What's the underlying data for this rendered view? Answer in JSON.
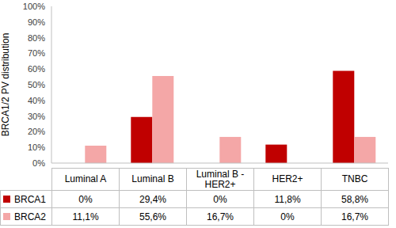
{
  "chart_data": {
    "type": "bar",
    "ylabel": "BRCA1/2 PV distribution",
    "categories": [
      "Luminal A",
      "Luminal B",
      "Luminal B - HER2+",
      "HER2+",
      "TNBC"
    ],
    "series": [
      {
        "name": "BRCA1",
        "color": "#c00000",
        "values": [
          0,
          29.4,
          0,
          11.8,
          58.8
        ],
        "value_labels": [
          "0%",
          "29,4%",
          "0%",
          "11,8%",
          "58,8%"
        ]
      },
      {
        "name": "BRCA2",
        "color": "#f4a7a7",
        "values": [
          11.1,
          55.6,
          16.7,
          0,
          16.7
        ],
        "value_labels": [
          "11,1%",
          "55,6%",
          "16,7%",
          "0%",
          "16,7%"
        ]
      }
    ],
    "ylim": [
      0,
      100
    ],
    "yticks": [
      {
        "value": 0,
        "label": "0%"
      },
      {
        "value": 10,
        "label": "10%"
      },
      {
        "value": 20,
        "label": "20%"
      },
      {
        "value": 30,
        "label": "30%"
      },
      {
        "value": 40,
        "label": "40%"
      },
      {
        "value": 50,
        "label": "50%"
      },
      {
        "value": 60,
        "label": "60%"
      },
      {
        "value": 70,
        "label": "70%"
      },
      {
        "value": 80,
        "label": "80%"
      },
      {
        "value": 90,
        "label": "90%"
      },
      {
        "value": 100,
        "label": "100%"
      }
    ],
    "grid": false
  }
}
